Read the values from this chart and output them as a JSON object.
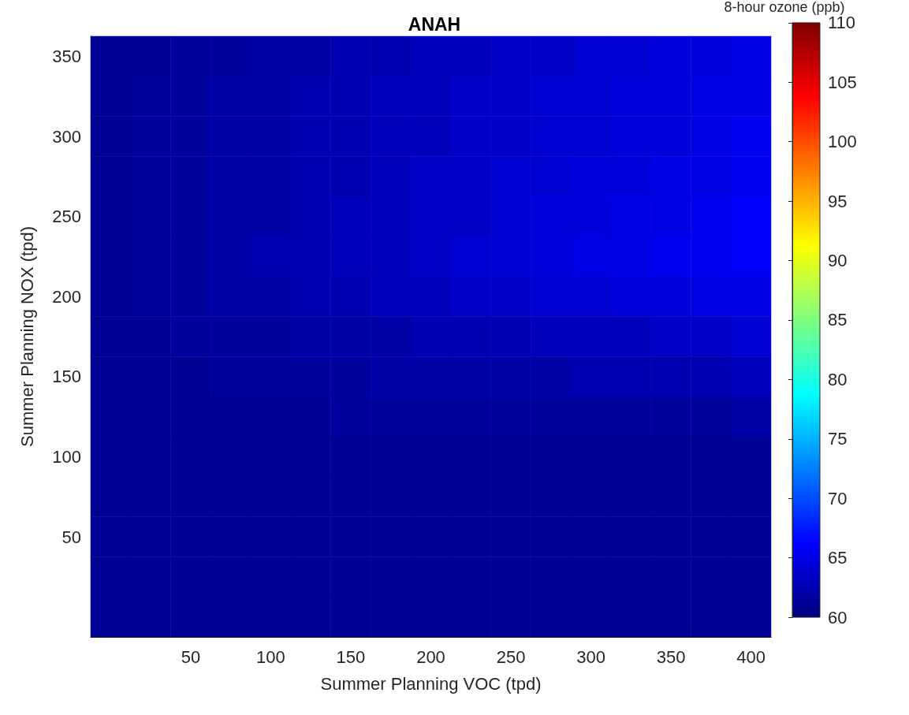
{
  "chart_data": {
    "type": "heatmap",
    "title": "ANAH",
    "xlabel": "Summer Planning VOC (tpd)",
    "ylabel": "Summer Planning NOX (tpd)",
    "clabel": "8-hour ozone (ppb)",
    "categories": [
      null,
      null,
      "50",
      null,
      "100",
      null,
      "150",
      null,
      "200",
      null,
      "250",
      null,
      "300",
      null,
      "350",
      null,
      "400"
    ],
    "y_categories": [
      "350",
      null,
      "300",
      null,
      "250",
      null,
      "200",
      null,
      "150",
      null,
      "100",
      null,
      "50",
      null,
      null
    ],
    "cells": [
      [
        61,
        61,
        61.5,
        61.5,
        62,
        62,
        62.5,
        62.5,
        63,
        63,
        63.5,
        63.5,
        64,
        64,
        64.5,
        64.5,
        65
      ],
      [
        61,
        61.5,
        61.5,
        62,
        62,
        62.5,
        62.5,
        63,
        63,
        63.5,
        63.5,
        64,
        64,
        64.5,
        64.5,
        65,
        65
      ],
      [
        61,
        61.5,
        61.5,
        62,
        62,
        62.5,
        62.5,
        63,
        63,
        63.5,
        63.5,
        64,
        64,
        64.5,
        64.5,
        65,
        65.5
      ],
      [
        61,
        61.5,
        61.5,
        62,
        62,
        62.5,
        62.5,
        63,
        63.5,
        63.5,
        64,
        64,
        64.5,
        64.5,
        65,
        65,
        65.5
      ],
      [
        61,
        61.5,
        61.5,
        62,
        62,
        62.5,
        63,
        63,
        63.5,
        63.5,
        64,
        64.5,
        64.5,
        65,
        65,
        65.5,
        66
      ],
      [
        61,
        61.5,
        61.5,
        62,
        62.5,
        62.5,
        63,
        63,
        63.5,
        64,
        64,
        64.5,
        65,
        65,
        65.5,
        65.5,
        66
      ],
      [
        61,
        61.5,
        61.5,
        62,
        62,
        62.5,
        62.5,
        63,
        63,
        63.5,
        63.5,
        64,
        64,
        64.5,
        64.5,
        65,
        65
      ],
      [
        61,
        61,
        61.5,
        61.5,
        61.5,
        62,
        62,
        62,
        62.5,
        62.5,
        62.5,
        63,
        63,
        63,
        63.5,
        63.5,
        64
      ],
      [
        61,
        61,
        61,
        61.5,
        61.5,
        61.5,
        61.5,
        62,
        62,
        62,
        62,
        62,
        62.5,
        62.5,
        62.5,
        62.5,
        63
      ],
      [
        61,
        61,
        61,
        61,
        61,
        61,
        61.5,
        61.5,
        61.5,
        61.5,
        61.5,
        61.5,
        61.5,
        61.5,
        61.5,
        61.5,
        62
      ],
      [
        61,
        61,
        61,
        61,
        61,
        61,
        61,
        61,
        61,
        61,
        61,
        61,
        61,
        61,
        61,
        61,
        61
      ],
      [
        61,
        61,
        61,
        61,
        61,
        61,
        61,
        61,
        61,
        61,
        61,
        61,
        61,
        61,
        61,
        61,
        61
      ],
      [
        61,
        61,
        61,
        61,
        61,
        61,
        61,
        61,
        61,
        61,
        61,
        61,
        61,
        61,
        61,
        61,
        61
      ],
      [
        61,
        61,
        61,
        61,
        61,
        61,
        61,
        61,
        61,
        61,
        61,
        61,
        61,
        61,
        61,
        61,
        61
      ],
      [
        61,
        61,
        61,
        61,
        61,
        61,
        61,
        61,
        61,
        61,
        61,
        61,
        61,
        61,
        61,
        61,
        61
      ]
    ],
    "clim": [
      60,
      110
    ],
    "cticks": [
      60,
      65,
      70,
      75,
      80,
      85,
      90,
      95,
      100,
      105,
      110
    ]
  }
}
